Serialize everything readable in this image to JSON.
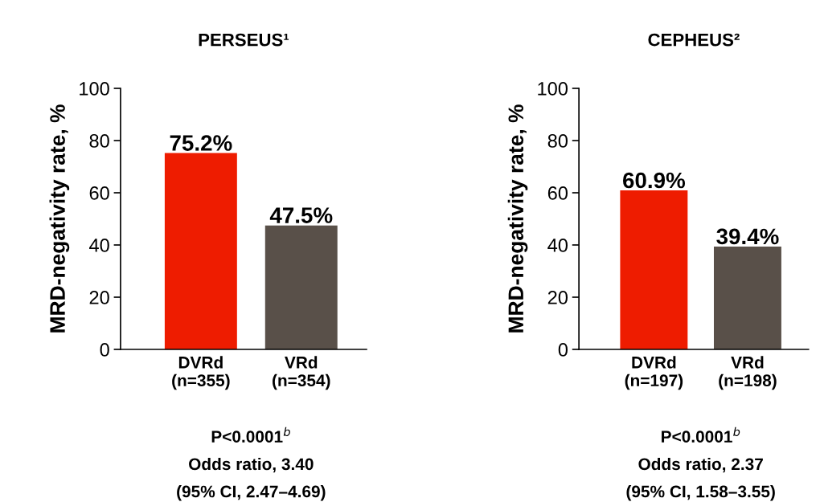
{
  "chart_data": [
    {
      "type": "bar",
      "title": "PERSEUS¹",
      "ylabel": "MRD-negativity rate, %",
      "categories": [
        "DVRd\n(n=355)",
        "VRd\n(n=354)"
      ],
      "values": [
        75.2,
        47.5
      ],
      "colors": [
        "#ee1c00",
        "#595049"
      ],
      "value_labels": [
        "75.2%",
        "47.5%"
      ],
      "ylim": [
        0,
        100
      ],
      "yticks": [
        0,
        20,
        40,
        60,
        80,
        100
      ],
      "grid": false,
      "legend": false,
      "annotations": [
        "P<0.0001$^{b}$",
        "Odds ratio, 3.40",
        "(95% CI, 2.47–4.69)"
      ]
    },
    {
      "type": "bar",
      "title": "CEPHEUS²",
      "ylabel": "MRD-negativity rate, %",
      "categories": [
        "DVRd\n(n=197)",
        "VRd\n(n=198)"
      ],
      "values": [
        60.9,
        39.4
      ],
      "colors": [
        "#ee1c00",
        "#595049"
      ],
      "value_labels": [
        "60.9%",
        "39.4%"
      ],
      "ylim": [
        0,
        100
      ],
      "yticks": [
        0,
        20,
        40,
        60,
        80,
        100
      ],
      "grid": false,
      "legend": false,
      "annotations": [
        "P<0.0001$^{b}$",
        "Odds ratio, 2.37",
        "(95% CI, 1.58–3.55)"
      ]
    }
  ]
}
